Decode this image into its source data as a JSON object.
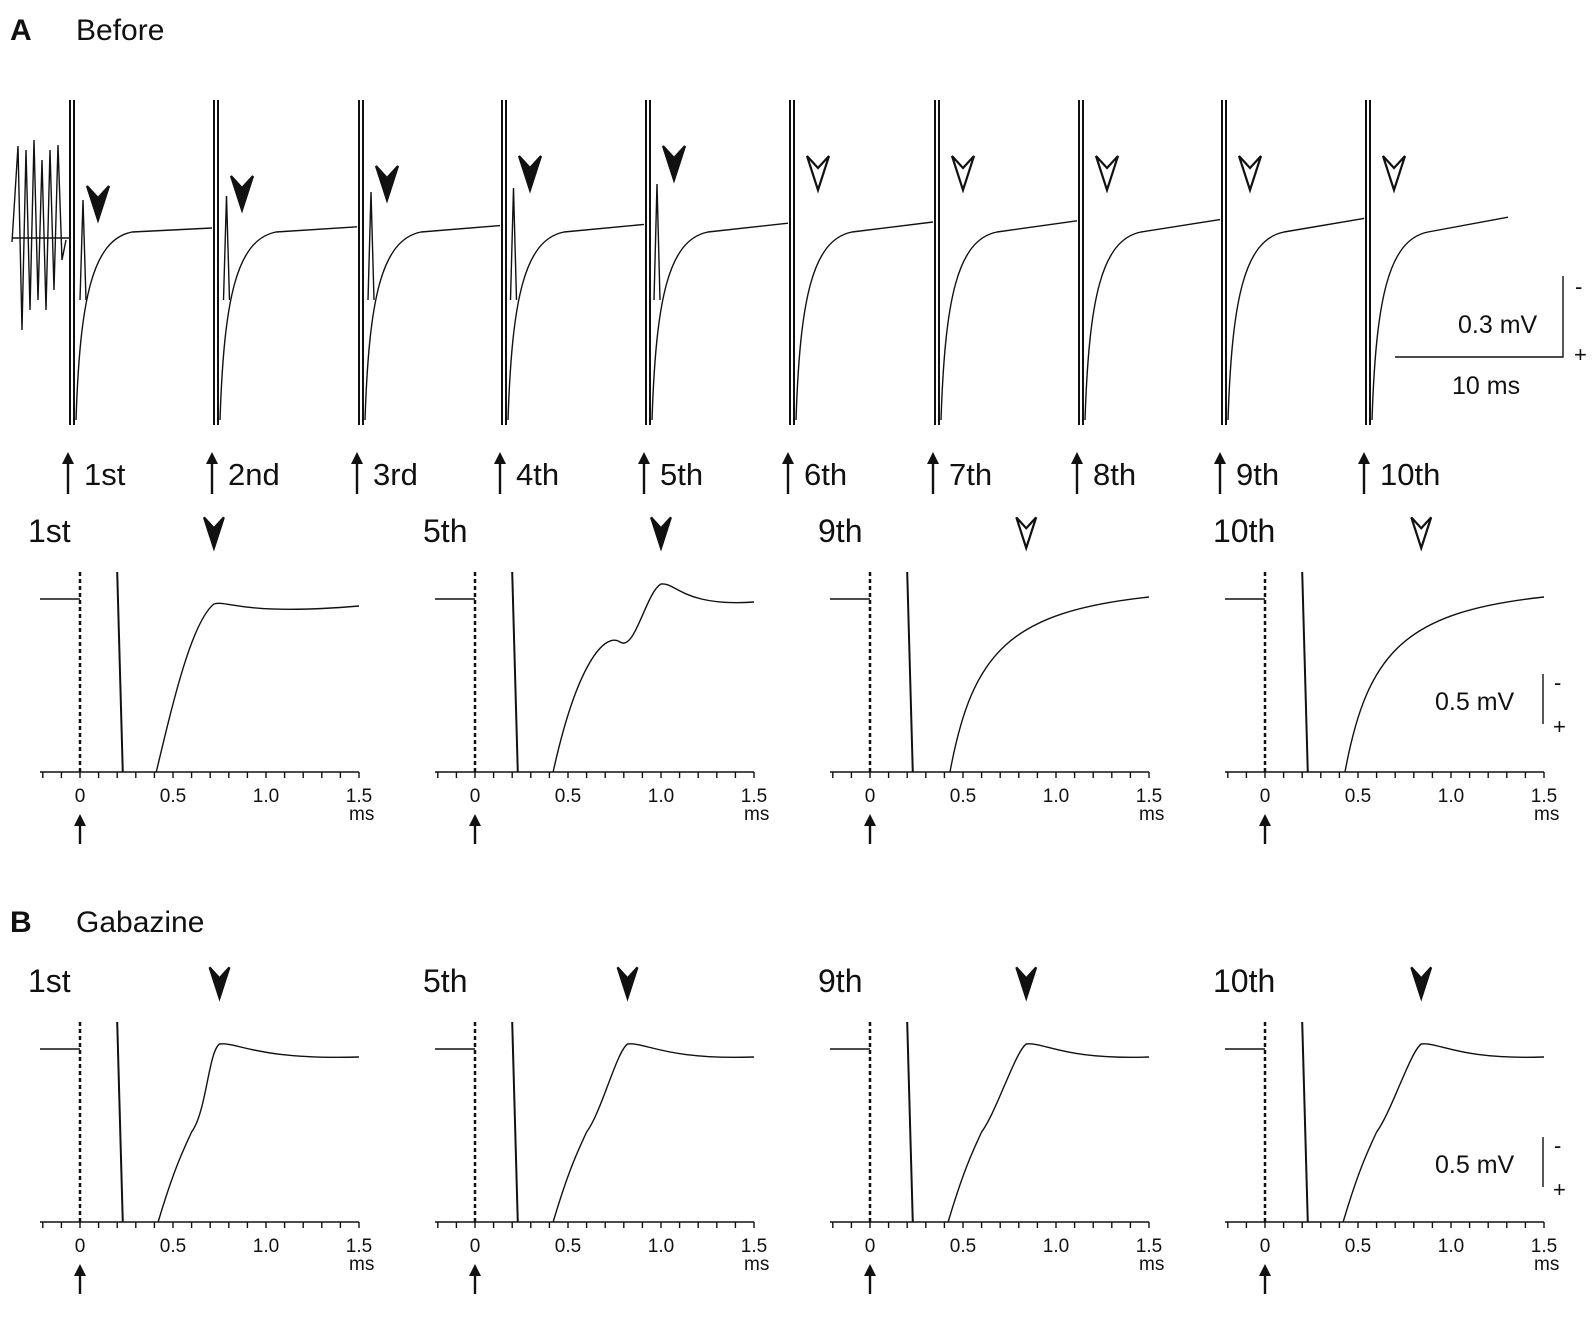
{
  "panel_a": {
    "letter": "A",
    "title": "Before"
  },
  "panel_b": {
    "letter": "B",
    "title": "Gabazine"
  },
  "stimuli": [
    "1st",
    "2nd",
    "3rd",
    "4th",
    "5th",
    "6th",
    "7th",
    "8th",
    "9th",
    "10th"
  ],
  "stimuli_arrowheads": [
    "filled",
    "filled",
    "filled",
    "filled",
    "filled",
    "open",
    "open",
    "open",
    "open",
    "open"
  ],
  "overview_scale": {
    "voltage": "0.3 mV",
    "time": "10 ms",
    "minus": "-",
    "plus": "+"
  },
  "zoom_scale": {
    "voltage": "0.5 mV",
    "minus": "-",
    "plus": "+"
  },
  "axis": {
    "ticks": [
      "0",
      "0.5",
      "1.0",
      "1.5"
    ],
    "unit": "ms"
  },
  "zoom_panels": {
    "before": [
      {
        "label": "1st",
        "arrowhead": "filled"
      },
      {
        "label": "5th",
        "arrowhead": "filled"
      },
      {
        "label": "9th",
        "arrowhead": "open"
      },
      {
        "label": "10th",
        "arrowhead": "open"
      }
    ],
    "gabazine": [
      {
        "label": "1st",
        "arrowhead": "filled"
      },
      {
        "label": "5th",
        "arrowhead": "filled"
      },
      {
        "label": "9th",
        "arrowhead": "filled"
      },
      {
        "label": "10th",
        "arrowhead": "filled"
      }
    ]
  },
  "chart_data": [
    {
      "type": "line",
      "panel": "A Before",
      "description_type": "field potential overview",
      "categories": [
        "1st",
        "2nd",
        "3rd",
        "4th",
        "5th",
        "6th",
        "7th",
        "8th",
        "9th",
        "10th"
      ],
      "spike_present": [
        true,
        true,
        true,
        true,
        true,
        false,
        false,
        false,
        false,
        false
      ]
    },
    {
      "type": "line",
      "panel": "A Before 1st/5th/9th/10th",
      "x_ticks": [
        0,
        0.5,
        1.0,
        1.5
      ],
      "xlim": [
        -0.2,
        1.5
      ],
      "spike_peak_time_ms": [
        0.72,
        1.0,
        null,
        null
      ]
    },
    {
      "type": "line",
      "panel": "B Gabazine 1st/5th/9th/10th",
      "x_ticks": [
        0,
        0.5,
        1.0,
        1.5
      ],
      "xlim": [
        -0.2,
        1.5
      ],
      "spike_peak_time_ms": [
        0.75,
        0.82,
        0.84,
        0.84
      ]
    }
  ]
}
